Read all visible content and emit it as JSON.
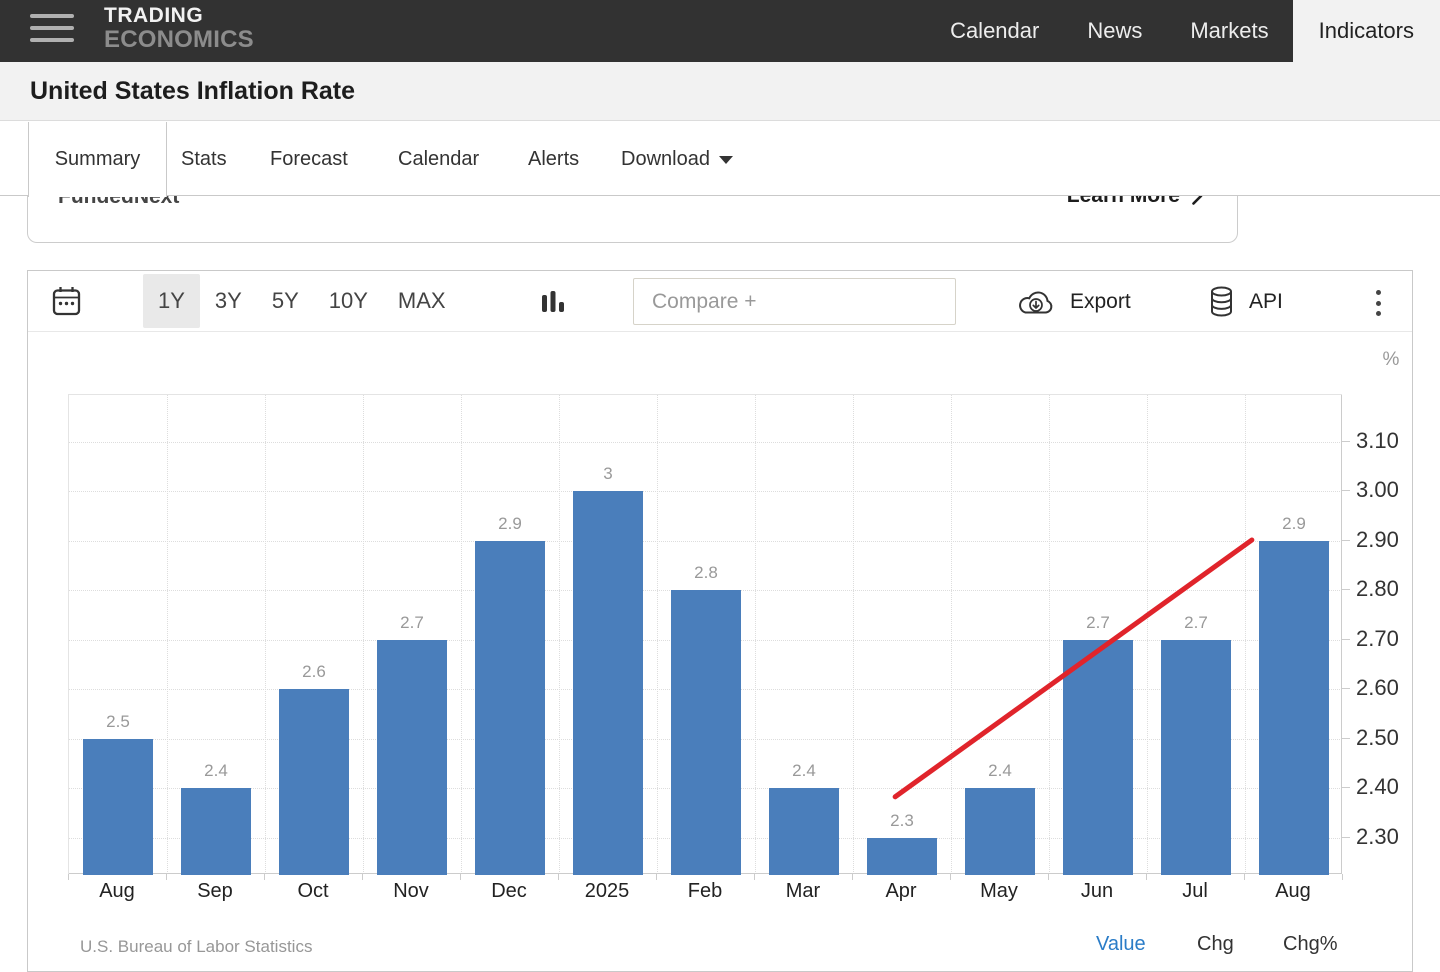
{
  "colors": {
    "bar": "#4a7ebb",
    "trend": "#e0242b",
    "value_active": "#2a7cc7",
    "nav_bg": "#323232"
  },
  "nav": {
    "logo_line1": "TRADING",
    "logo_line2": "ECONOMICS",
    "items": [
      {
        "label": "Calendar",
        "active": false
      },
      {
        "label": "News",
        "active": false
      },
      {
        "label": "Markets",
        "active": false
      },
      {
        "label": "Indicators",
        "active": true
      }
    ]
  },
  "page": {
    "title": "United States Inflation Rate"
  },
  "tabs": {
    "items": [
      {
        "label": "Summary",
        "active": true
      },
      {
        "label": "Stats",
        "active": false
      },
      {
        "label": "Forecast",
        "active": false
      },
      {
        "label": "Calendar",
        "active": false
      },
      {
        "label": "Alerts",
        "active": false
      },
      {
        "label": "Download",
        "active": false,
        "dropdown": true
      }
    ]
  },
  "ad": {
    "brand": "FundedNext",
    "cta": "Learn More"
  },
  "toolbar": {
    "ranges": [
      {
        "label": "1Y",
        "active": true
      },
      {
        "label": "3Y",
        "active": false
      },
      {
        "label": "5Y",
        "active": false
      },
      {
        "label": "10Y",
        "active": false
      },
      {
        "label": "MAX",
        "active": false
      }
    ],
    "compare_placeholder": "Compare +",
    "export_label": "Export",
    "api_label": "API"
  },
  "chart_data": {
    "type": "bar",
    "title": "United States Inflation Rate",
    "unit": "%",
    "categories": [
      "Aug",
      "Sep",
      "Oct",
      "Nov",
      "Dec",
      "2025",
      "Feb",
      "Mar",
      "Apr",
      "May",
      "Jun",
      "Jul",
      "Aug"
    ],
    "values": [
      2.5,
      2.4,
      2.6,
      2.7,
      2.9,
      3,
      2.8,
      2.4,
      2.3,
      2.4,
      2.7,
      2.7,
      2.9
    ],
    "bar_labels": [
      "2.5",
      "2.4",
      "2.6",
      "2.7",
      "2.9",
      "3",
      "2.8",
      "2.4",
      "2.3",
      "2.4",
      "2.7",
      "2.7",
      "2.9"
    ],
    "yticks": [
      2.3,
      2.4,
      2.5,
      2.6,
      2.7,
      2.8,
      2.9,
      3.0,
      3.1
    ],
    "ytick_labels": [
      "2.30",
      "2.40",
      "2.50",
      "2.60",
      "2.70",
      "2.80",
      "2.90",
      "3.00",
      "3.10"
    ],
    "ylim": [
      2.225,
      3.195
    ],
    "grid": "dotted",
    "legend": "none",
    "bar_color": "#4a7ebb",
    "trend_line": {
      "color": "#e0242b",
      "from": {
        "x_band": 8.43,
        "value": 2.383
      },
      "to": {
        "x_band": 12.07,
        "value": 2.902
      }
    }
  },
  "chart_footer": {
    "source": "U.S. Bureau of Labor Statistics",
    "toggles": [
      {
        "label": "Value",
        "active": true
      },
      {
        "label": "Chg",
        "active": false
      },
      {
        "label": "Chg%",
        "active": false
      }
    ]
  }
}
